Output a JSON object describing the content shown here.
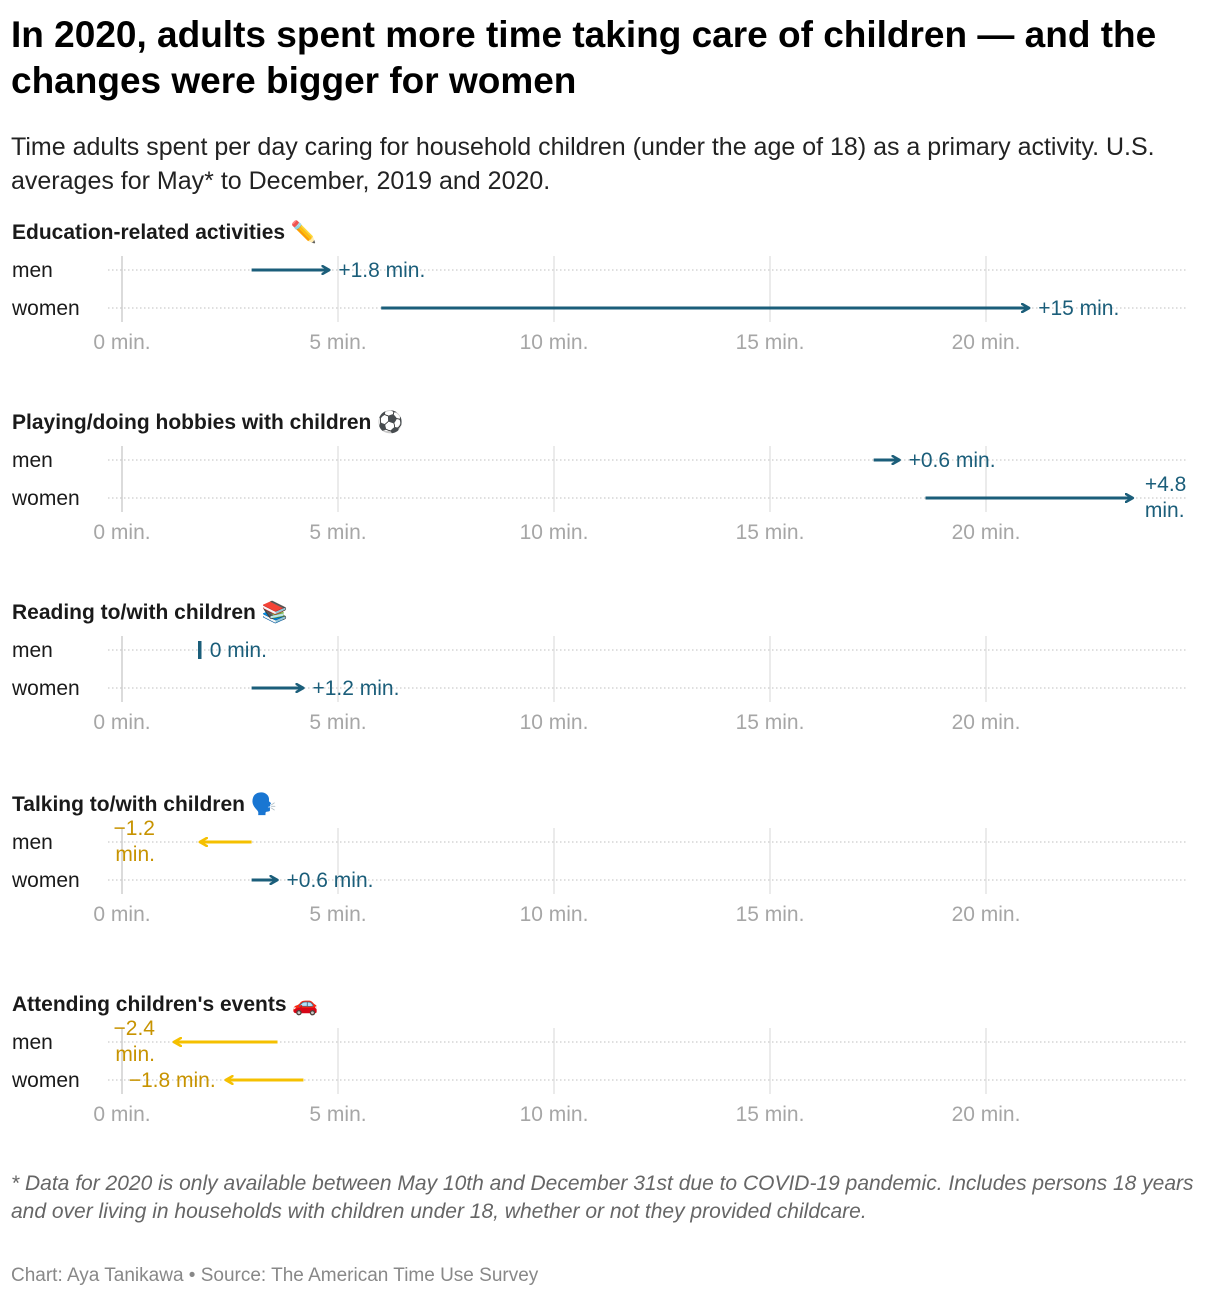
{
  "title": "In 2020, adults spent more time taking care of children — and the changes were bigger for women",
  "subtitle": "Time adults spent per day caring for household children (under the age of 18) as a primary activity. U.S. averages for May* to December, 2019 and 2020.",
  "footnote": "* Data for 2020 is only available between May 10th and December 31st due to COVID-19 pandemic. Includes persons 18 years and over living in households with children under 18, whether or not they provided childcare.",
  "credit": "Chart: Aya Tanikawa • Source: The American Time Use Survey",
  "colors": {
    "increase": "#1b5e7a",
    "decrease": "#f5c000",
    "decrease_text": "#c79300",
    "grid": "#e4e4e4",
    "row_dot": "#cccccc"
  },
  "chart_data": {
    "type": "arrow-dumbbell",
    "x_axis": {
      "min": 0,
      "max": 24,
      "ticks": [
        0,
        5,
        10,
        15,
        20
      ],
      "tick_labels": [
        "0 min.",
        "5 min.",
        "10 min.",
        "15 min.",
        "20 min."
      ]
    },
    "series_labels": [
      "men",
      "women"
    ],
    "panels": [
      {
        "title": "Education-related activities ✏️",
        "rows": [
          {
            "group": "men",
            "from": 3.0,
            "to": 4.8,
            "change_label": "+1.8 min."
          },
          {
            "group": "women",
            "from": 6.0,
            "to": 21.0,
            "change_label": "+15 min."
          }
        ]
      },
      {
        "title": "Playing/doing hobbies with children ⚽",
        "rows": [
          {
            "group": "men",
            "from": 17.4,
            "to": 18.0,
            "change_label": "+0.6 min."
          },
          {
            "group": "women",
            "from": 18.6,
            "to": 23.4,
            "change_label": "+4.8 min."
          }
        ]
      },
      {
        "title": "Reading to/with children 📚",
        "rows": [
          {
            "group": "men",
            "from": 1.8,
            "to": 1.8,
            "change_label": "0 min."
          },
          {
            "group": "women",
            "from": 3.0,
            "to": 4.2,
            "change_label": "+1.2 min."
          }
        ]
      },
      {
        "title": "Talking to/with children 🗣️",
        "rows": [
          {
            "group": "men",
            "from": 3.0,
            "to": 1.8,
            "change_label": "−1.2 min."
          },
          {
            "group": "women",
            "from": 3.0,
            "to": 3.6,
            "change_label": "+0.6 min."
          }
        ]
      },
      {
        "title": "Attending children's events 🚗",
        "rows": [
          {
            "group": "men",
            "from": 3.6,
            "to": 1.2,
            "change_label": "−2.4 min."
          },
          {
            "group": "women",
            "from": 4.2,
            "to": 2.4,
            "change_label": "−1.8 min."
          }
        ]
      }
    ]
  }
}
